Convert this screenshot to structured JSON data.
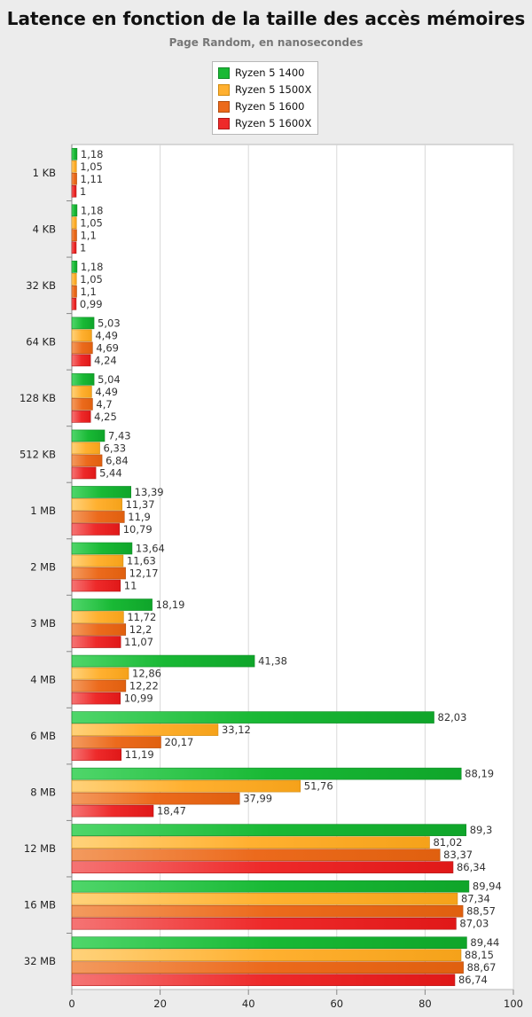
{
  "header": {
    "title": "Latence en fonction de la taille des accès mémoires",
    "subtitle": "Page Random, en nanosecondes"
  },
  "colors": {
    "background": "#ececec",
    "plot_background": "#ffffff",
    "grid": "#d8d8d8",
    "series": [
      "#19b935",
      "#ffb030",
      "#ec6a1c",
      "#ee2a2a"
    ]
  },
  "chart_data": {
    "type": "bar",
    "orientation": "horizontal",
    "title": "Latence en fonction de la taille des accès mémoires",
    "subtitle": "Page Random, en nanosecondes",
    "categories": [
      "1 KB",
      "4 KB",
      "32 KB",
      "64 KB",
      "128 KB",
      "512 KB",
      "1 MB",
      "2 MB",
      "3 MB",
      "4 MB",
      "6 MB",
      "8 MB",
      "12 MB",
      "16 MB",
      "32 MB"
    ],
    "series": [
      {
        "name": "Ryzen 5 1400",
        "values": [
          1.18,
          1.18,
          1.18,
          5.03,
          5.04,
          7.43,
          13.39,
          13.64,
          18.19,
          41.38,
          82.03,
          88.19,
          89.3,
          89.94,
          89.44
        ],
        "labels": [
          "1,18",
          "1,18",
          "1,18",
          "5,03",
          "5,04",
          "7,43",
          "13,39",
          "13,64",
          "18,19",
          "41,38",
          "82,03",
          "88,19",
          "89,3",
          "89,94",
          "89,44"
        ]
      },
      {
        "name": "Ryzen 5 1500X",
        "values": [
          1.05,
          1.05,
          1.05,
          4.49,
          4.49,
          6.33,
          11.37,
          11.63,
          11.72,
          12.86,
          33.12,
          51.76,
          81.02,
          87.34,
          88.15
        ],
        "labels": [
          "1,05",
          "1,05",
          "1,05",
          "4,49",
          "4,49",
          "6,33",
          "11,37",
          "11,63",
          "11,72",
          "12,86",
          "33,12",
          "51,76",
          "81,02",
          "87,34",
          "88,15"
        ]
      },
      {
        "name": "Ryzen 5 1600",
        "values": [
          1.11,
          1.1,
          1.1,
          4.69,
          4.7,
          6.84,
          11.9,
          12.17,
          12.2,
          12.22,
          20.17,
          37.99,
          83.37,
          88.57,
          88.67
        ],
        "labels": [
          "1,11",
          "1,1",
          "1,1",
          "4,69",
          "4,7",
          "6,84",
          "11,9",
          "12,17",
          "12,2",
          "12,22",
          "20,17",
          "37,99",
          "83,37",
          "88,57",
          "88,67"
        ]
      },
      {
        "name": "Ryzen 5 1600X",
        "values": [
          1,
          1,
          0.99,
          4.24,
          4.25,
          5.44,
          10.79,
          11,
          11.07,
          10.99,
          11.19,
          18.47,
          86.34,
          87.03,
          86.74
        ],
        "labels": [
          "1",
          "1",
          "0,99",
          "4,24",
          "4,25",
          "5,44",
          "10,79",
          "11",
          "11,07",
          "10,99",
          "11,19",
          "18,47",
          "86,34",
          "87,03",
          "86,74"
        ]
      }
    ],
    "xlim": [
      0,
      100
    ],
    "x_ticks": [
      0,
      20,
      40,
      60,
      80,
      100
    ],
    "grid": true,
    "legend": "top-center"
  }
}
